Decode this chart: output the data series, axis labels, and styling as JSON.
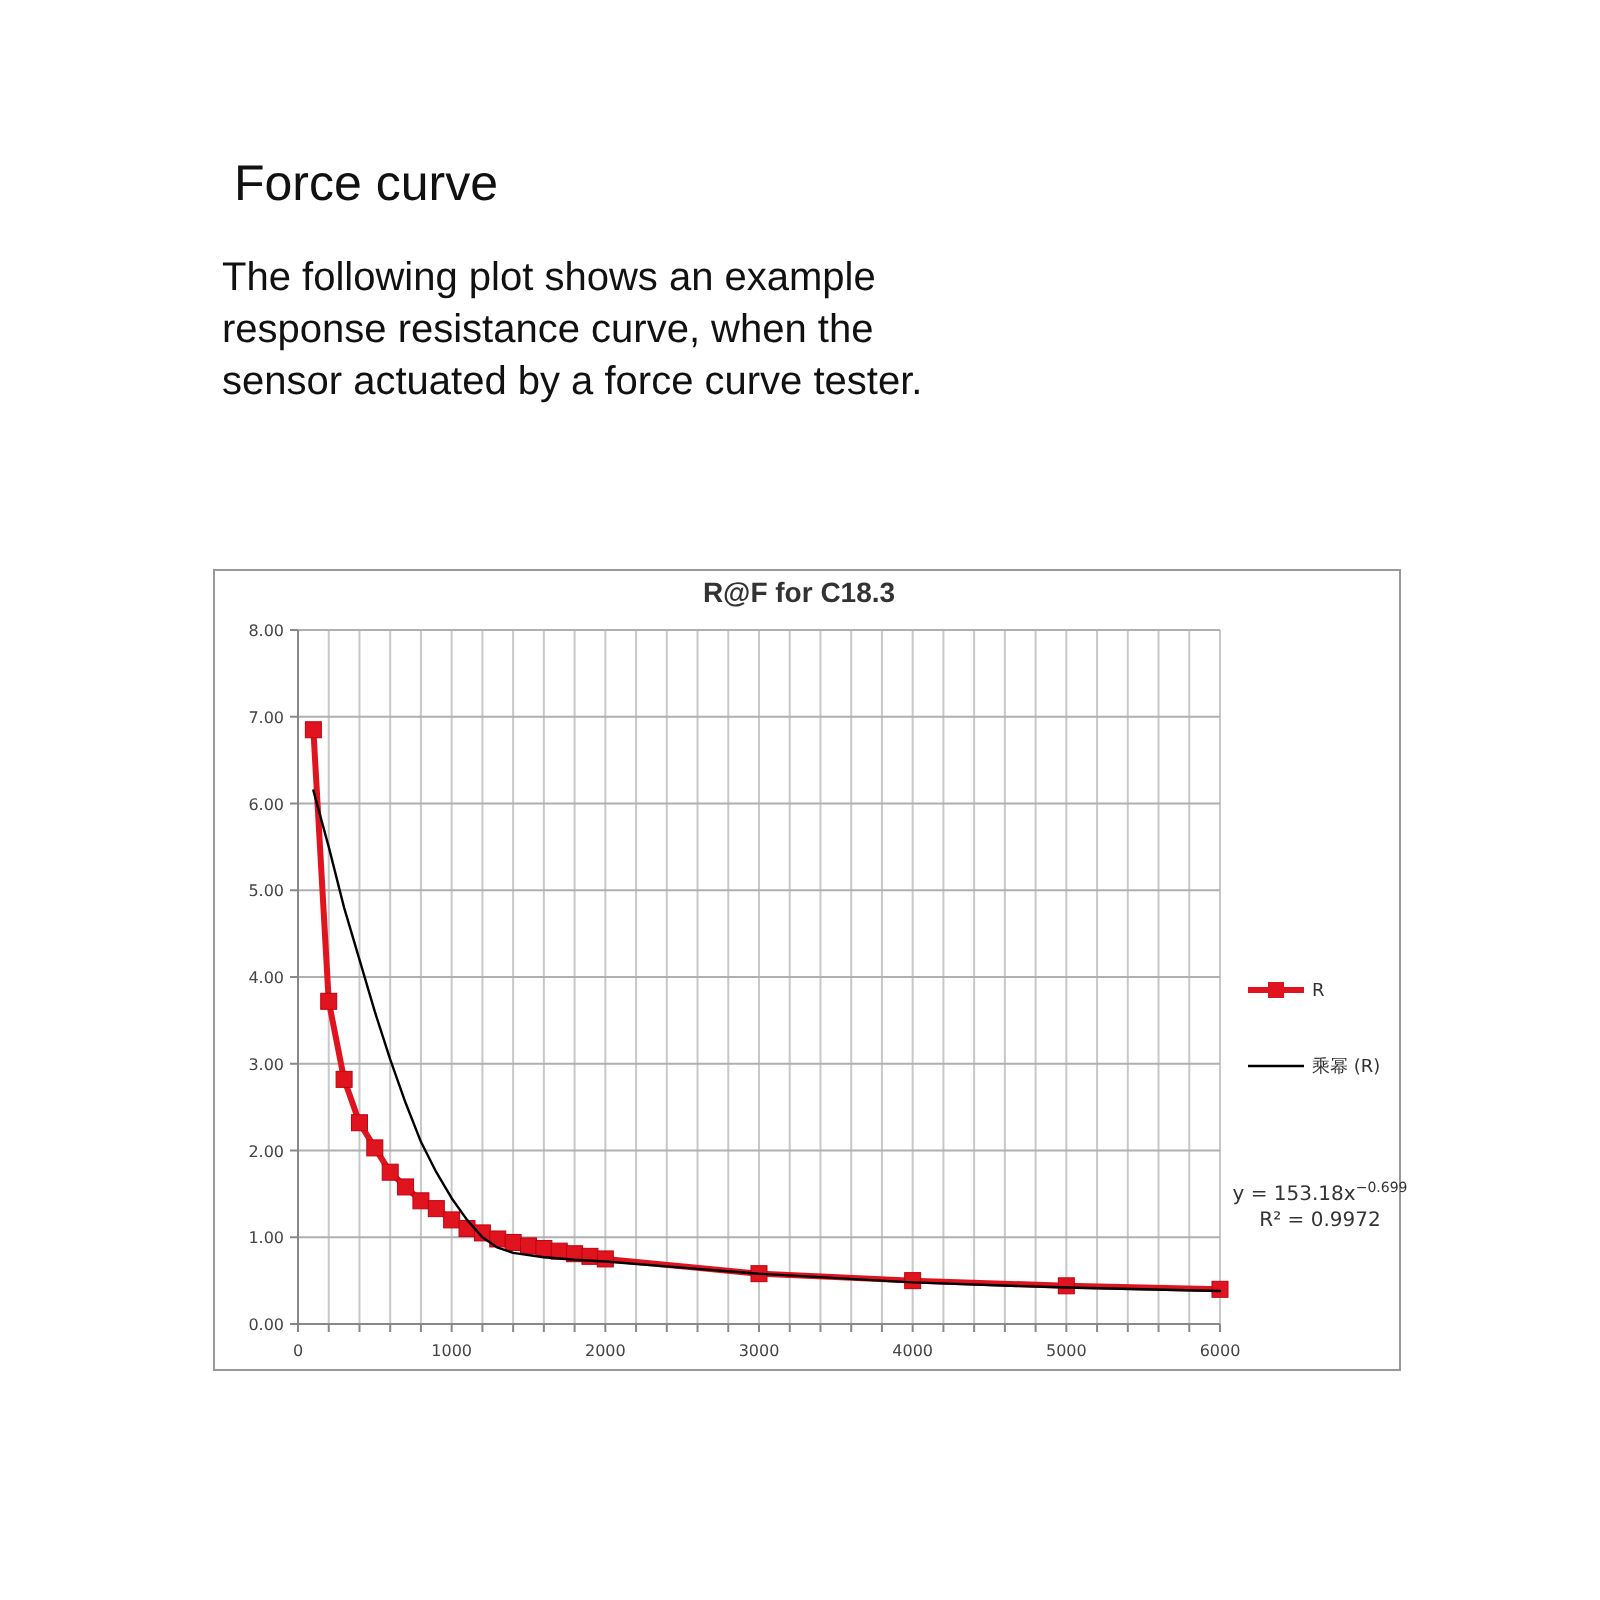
{
  "chart_data": {
    "type": "line",
    "title": "R@F  for C18.3",
    "annotations": [
      "Force curve",
      "The following plot shows an example response resistance curve, when the sensor actuated by a force curve tester.",
      "y = 153.18x$^{−0.699}$",
      "R² = 0.9972"
    ],
    "xlim": [
      0,
      6000
    ],
    "ylim": [
      0,
      8
    ],
    "xticks": [
      0,
      {
        "value": 200,
        "label": null
      },
      {
        "value": 400,
        "label": null
      },
      {
        "value": 600,
        "label": null
      },
      {
        "value": 800,
        "label": null
      },
      1000,
      {
        "value": 1200,
        "label": null
      },
      {
        "value": 1400,
        "label": null
      },
      {
        "value": 1600,
        "label": null
      },
      {
        "value": 1800,
        "label": null
      },
      2000,
      {
        "value": 2200,
        "label": null
      },
      {
        "value": 2400,
        "label": null
      },
      {
        "value": 2600,
        "label": null
      },
      {
        "value": 2800,
        "label": null
      },
      3000,
      {
        "value": 3200,
        "label": null
      },
      {
        "value": 3400,
        "label": null
      },
      {
        "value": 3600,
        "label": null
      },
      {
        "value": 3800,
        "label": null
      },
      4000,
      {
        "value": 4200,
        "label": null
      },
      {
        "value": 4400,
        "label": null
      },
      {
        "value": 4600,
        "label": null
      },
      {
        "value": 4800,
        "label": null
      },
      5000,
      {
        "value": 5200,
        "label": null
      },
      {
        "value": 5400,
        "label": null
      },
      {
        "value": 5600,
        "label": null
      },
      {
        "value": 5800,
        "label": null
      },
      6000
    ],
    "yticks": [
      {
        "value": 0,
        "label": "0.00"
      },
      {
        "value": 1,
        "label": "1.00"
      },
      {
        "value": 2,
        "label": "2.00"
      },
      {
        "value": 3,
        "label": "3.00"
      },
      {
        "value": 4,
        "label": "4.00"
      },
      {
        "value": 5,
        "label": "5.00"
      },
      {
        "value": 6,
        "label": "6.00"
      },
      {
        "value": 7,
        "label": "7.00"
      },
      {
        "value": 8,
        "label": "8.00"
      }
    ],
    "grid": true,
    "legend": "right",
    "series": [
      {
        "name": "R",
        "color": "#e0141e",
        "marker": "square",
        "x": [
          100,
          200,
          300,
          400,
          500,
          600,
          700,
          800,
          900,
          1000,
          1100,
          1200,
          1300,
          1400,
          1500,
          1600,
          1700,
          1800,
          1900,
          2000,
          3000,
          4000,
          5000,
          6000
        ],
        "values": [
          6.85,
          3.72,
          2.82,
          2.32,
          2.03,
          1.75,
          1.58,
          1.42,
          1.33,
          1.2,
          1.1,
          1.05,
          0.98,
          0.94,
          0.9,
          0.87,
          0.84,
          0.81,
          0.78,
          0.75,
          0.58,
          0.5,
          0.44,
          0.4
        ]
      },
      {
        "name": "乘幂 (R)",
        "color": "#000000",
        "marker": "none",
        "x": [
          100,
          200,
          300,
          400,
          500,
          600,
          700,
          800,
          900,
          1000,
          1100,
          1200,
          1300,
          1400,
          1600,
          1800,
          2000,
          2500,
          3000,
          4000,
          5000,
          6000
        ],
        "values": [
          6.15,
          5.5,
          4.8,
          4.2,
          3.6,
          3.05,
          2.55,
          2.1,
          1.75,
          1.45,
          1.2,
          1.0,
          0.88,
          0.82,
          0.77,
          0.74,
          0.72,
          0.65,
          0.58,
          0.48,
          0.42,
          0.38
        ]
      }
    ]
  }
}
